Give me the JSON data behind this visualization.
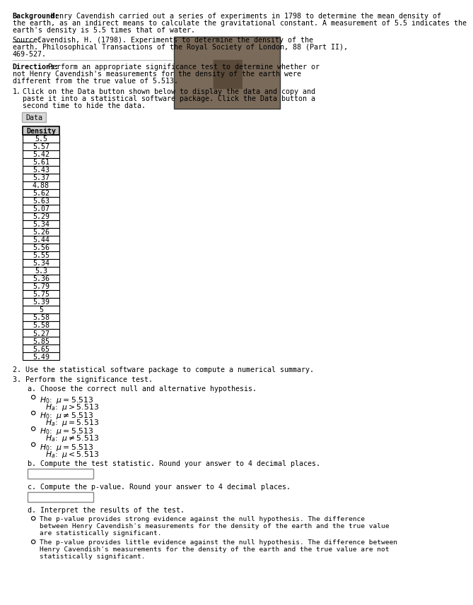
{
  "bg_color": "#ffffff",
  "background_bold": "Background:",
  "background_rest1": " Henry Cavendish carried out a series of experiments in 1798 to determine the mean density of",
  "background_line2": "the earth, as an indirect means to calculate the gravitational constant. A measurement of 5.5 indicates the",
  "background_line3": "earth's density is 5.5 times that of water.",
  "source_label": "Source:",
  "source_rest": " Cavendish, H. (1798). Experiments to determine the density of the",
  "source_line2": "earth. Philosophical Transactions of the Royal Society of London, 88 (Part II),",
  "source_line3": "469-527.",
  "directions_bold": "Directions:",
  "directions_rest": " Perform an appropriate significance test to determine whether or",
  "directions_line2": "not Henry Cavendish's measurements for the density of the earth were",
  "directions_line3": "different from the true value of 5.513.",
  "step1_num": "1.",
  "step1_line1": "Click on the Data button shown below to display the data and copy and",
  "step1_line2": "paste it into a statistical software package. Click the Data button a",
  "step1_line3": "second time to hide the data.",
  "data_button_label": "Data",
  "density_header": "Density",
  "density_values": [
    "5.5",
    "5.57",
    "5.42",
    "5.61",
    "5.43",
    "5.37",
    "4.88",
    "5.62",
    "5.63",
    "5.07",
    "5.29",
    "5.34",
    "5.26",
    "5.44",
    "5.56",
    "5.55",
    "5.34",
    "5.3",
    "5.36",
    "5.79",
    "5.75",
    "5.39",
    "5",
    "5.58",
    "5.58",
    "5.27",
    "5.85",
    "5.65",
    "5.49"
  ],
  "step2_text": "2. Use the statistical software package to compute a numerical summary.",
  "step3_text": "3. Perform the significance test.",
  "step3a_text": "a. Choose the correct null and alternative hypothesis.",
  "hyp_pairs": [
    [
      "$H_0$:  $\\mu = 5.513$",
      "$H_a$:  $\\mu > 5.513$"
    ],
    [
      "$H_0$:  $\\mu \\neq 5.513$",
      "$H_a$:  $\\mu = 5.513$"
    ],
    [
      "$H_0$:  $\\mu = 5.513$",
      "$H_a$:  $\\mu \\neq 5.513$"
    ],
    [
      "$H_0$:  $\\mu = 5.513$",
      "$H_a$:  $\\mu < 5.513$"
    ]
  ],
  "step3b_text": "b. Compute the test statistic. Round your answer to 4 decimal places.",
  "step3c_text": "c. Compute the p-value. Round your answer to 4 decimal places.",
  "step3d_text": "d. Interpret the results of the test.",
  "interp1_lines": [
    "The p-value provides strong evidence against the null hypothesis. The difference",
    "between Henry Cavendish's measurements for the density of the earth and the true value",
    "are statistically significant."
  ],
  "interp2_lines": [
    "The p-value provides little evidence against the null hypothesis. The difference between",
    "Henry Cavendish's measurements for the density of the earth and the true value are not",
    "statistically significant."
  ],
  "text_color": "#000000",
  "button_face": "#d8d8d8",
  "button_edge": "#aaaaaa",
  "header_face": "#c8c8c8",
  "portrait_face": "#7a6a5a",
  "portrait_edge": "#333333",
  "input_edge": "#888888",
  "sep_line_color": "#bbbbbb"
}
